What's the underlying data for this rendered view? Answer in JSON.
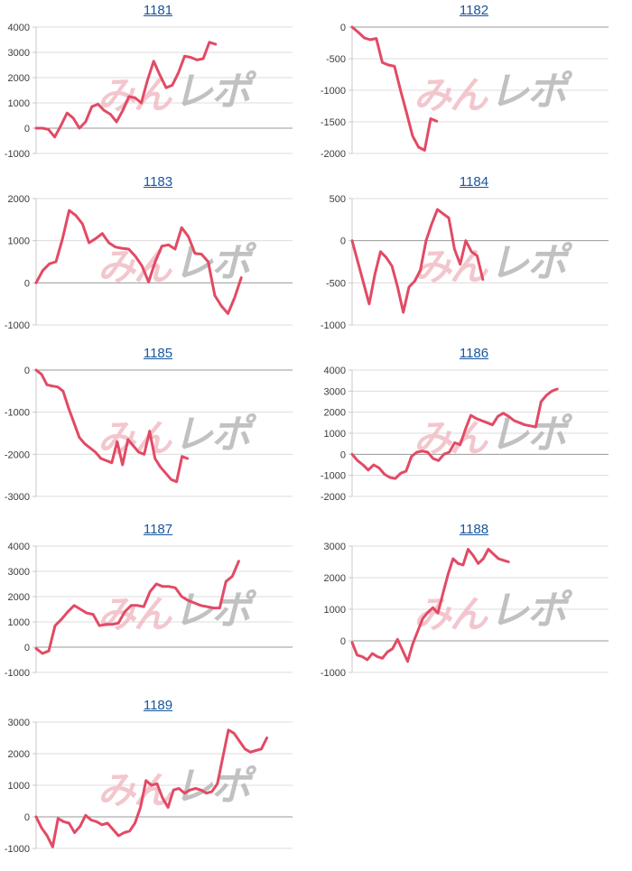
{
  "page": {
    "background": "#ffffff",
    "grid_columns": 2,
    "grid_rows": 5
  },
  "watermark": {
    "left_text": "みん",
    "right_text": "レポ",
    "left_color": "#efb4bd",
    "right_color": "#b2b2b2"
  },
  "styles": {
    "line_color": "#e24a65",
    "grid_color": "#dcdcdc",
    "zero_line_color": "#999999",
    "axis_color": "#c8c8c8",
    "tick_text_color": "#3c3c3c",
    "title_link_color": "#17569e"
  },
  "chart_data": [
    {
      "type": "line",
      "title": "1181",
      "ylim": [
        -1000,
        4000
      ],
      "ticks": [
        4000,
        3000,
        2000,
        1000,
        0,
        -1000
      ],
      "span": 0.7,
      "values": [
        0,
        0,
        -50,
        -350,
        100,
        600,
        400,
        0,
        250,
        850,
        950,
        700,
        550,
        250,
        700,
        1250,
        1200,
        1000,
        1900,
        2650,
        2100,
        1600,
        1700,
        2200,
        2850,
        2800,
        2700,
        2750,
        3400,
        3320
      ]
    },
    {
      "type": "line",
      "title": "1182",
      "ylim": [
        -2000,
        0
      ],
      "ticks": [
        0,
        -500,
        -1000,
        -1500,
        -2000
      ],
      "span": 0.33,
      "values": [
        0,
        -80,
        -170,
        -200,
        -180,
        -560,
        -600,
        -620,
        -1000,
        -1350,
        -1720,
        -1900,
        -1950,
        -1450,
        -1490
      ]
    },
    {
      "type": "line",
      "title": "1183",
      "ylim": [
        -1000,
        2000
      ],
      "ticks": [
        2000,
        1000,
        0,
        -1000
      ],
      "span": 0.8,
      "values": [
        0,
        290,
        450,
        500,
        1050,
        1720,
        1600,
        1400,
        950,
        1050,
        1170,
        950,
        850,
        820,
        800,
        630,
        400,
        20,
        500,
        870,
        900,
        800,
        1310,
        1100,
        700,
        680,
        500,
        -300,
        -550,
        -730,
        -350,
        120
      ]
    },
    {
      "type": "line",
      "title": "1184",
      "ylim": [
        -1000,
        500
      ],
      "ticks": [
        500,
        0,
        -500,
        -1000
      ],
      "span": 0.51,
      "values": [
        0,
        -250,
        -500,
        -750,
        -400,
        -130,
        -200,
        -300,
        -550,
        -850,
        -550,
        -480,
        -350,
        0,
        200,
        370,
        320,
        270,
        -100,
        -280,
        0,
        -130,
        -180,
        -460
      ]
    },
    {
      "type": "line",
      "title": "1185",
      "ylim": [
        -3000,
        0
      ],
      "ticks": [
        0,
        -1000,
        -2000,
        -3000
      ],
      "span": 0.59,
      "values": [
        0,
        -100,
        -350,
        -380,
        -400,
        -500,
        -900,
        -1250,
        -1600,
        -1750,
        -1850,
        -1950,
        -2100,
        -2150,
        -2200,
        -1700,
        -2250,
        -1650,
        -1800,
        -1950,
        -2000,
        -1450,
        -2100,
        -2300,
        -2450,
        -2600,
        -2650,
        -2050,
        -2100
      ]
    },
    {
      "type": "line",
      "title": "1186",
      "ylim": [
        -2000,
        4000
      ],
      "ticks": [
        4000,
        3000,
        2000,
        1000,
        0,
        -1000,
        -2000
      ],
      "span": 0.8,
      "values": [
        0,
        -300,
        -500,
        -750,
        -500,
        -650,
        -950,
        -1100,
        -1150,
        -900,
        -800,
        -100,
        100,
        150,
        100,
        -200,
        -300,
        0,
        100,
        550,
        450,
        1200,
        1850,
        1700,
        1600,
        1500,
        1400,
        1800,
        1950,
        1800,
        1600,
        1500,
        1400,
        1350,
        1300,
        2500,
        2800,
        3000,
        3100
      ]
    },
    {
      "type": "line",
      "title": "1187",
      "ylim": [
        -1000,
        4000
      ],
      "ticks": [
        4000,
        3000,
        2000,
        1000,
        0,
        -1000
      ],
      "span": 0.79,
      "values": [
        -50,
        -250,
        -150,
        850,
        1100,
        1400,
        1650,
        1500,
        1350,
        1300,
        850,
        900,
        900,
        950,
        1400,
        1650,
        1650,
        1600,
        2200,
        2500,
        2400,
        2400,
        2350,
        2000,
        1850,
        1750,
        1650,
        1600,
        1550,
        1550,
        2600,
        2800,
        3400
      ]
    },
    {
      "type": "line",
      "title": "1188",
      "ylim": [
        -1000,
        3000
      ],
      "ticks": [
        3000,
        2000,
        1000,
        0,
        -1000
      ],
      "span": 0.61,
      "values": [
        -50,
        -450,
        -500,
        -600,
        -400,
        -500,
        -550,
        -350,
        -250,
        50,
        -300,
        -650,
        -100,
        300,
        700,
        900,
        1050,
        880,
        1500,
        2100,
        2600,
        2450,
        2400,
        2900,
        2700,
        2450,
        2600,
        2900,
        2750,
        2600,
        2550,
        2500
      ]
    },
    {
      "type": "line",
      "title": "1189",
      "ylim": [
        -1000,
        3000
      ],
      "ticks": [
        3000,
        2000,
        1000,
        0,
        -1000
      ],
      "span": 0.9,
      "values": [
        0,
        -350,
        -600,
        -950,
        -50,
        -150,
        -200,
        -500,
        -300,
        50,
        -100,
        -150,
        -250,
        -200,
        -400,
        -600,
        -500,
        -450,
        -200,
        300,
        1150,
        1000,
        1050,
        600,
        300,
        850,
        900,
        750,
        850,
        900,
        850,
        750,
        800,
        1050,
        1900,
        2750,
        2650,
        2400,
        2150,
        2050,
        2100,
        2150,
        2500
      ]
    }
  ]
}
